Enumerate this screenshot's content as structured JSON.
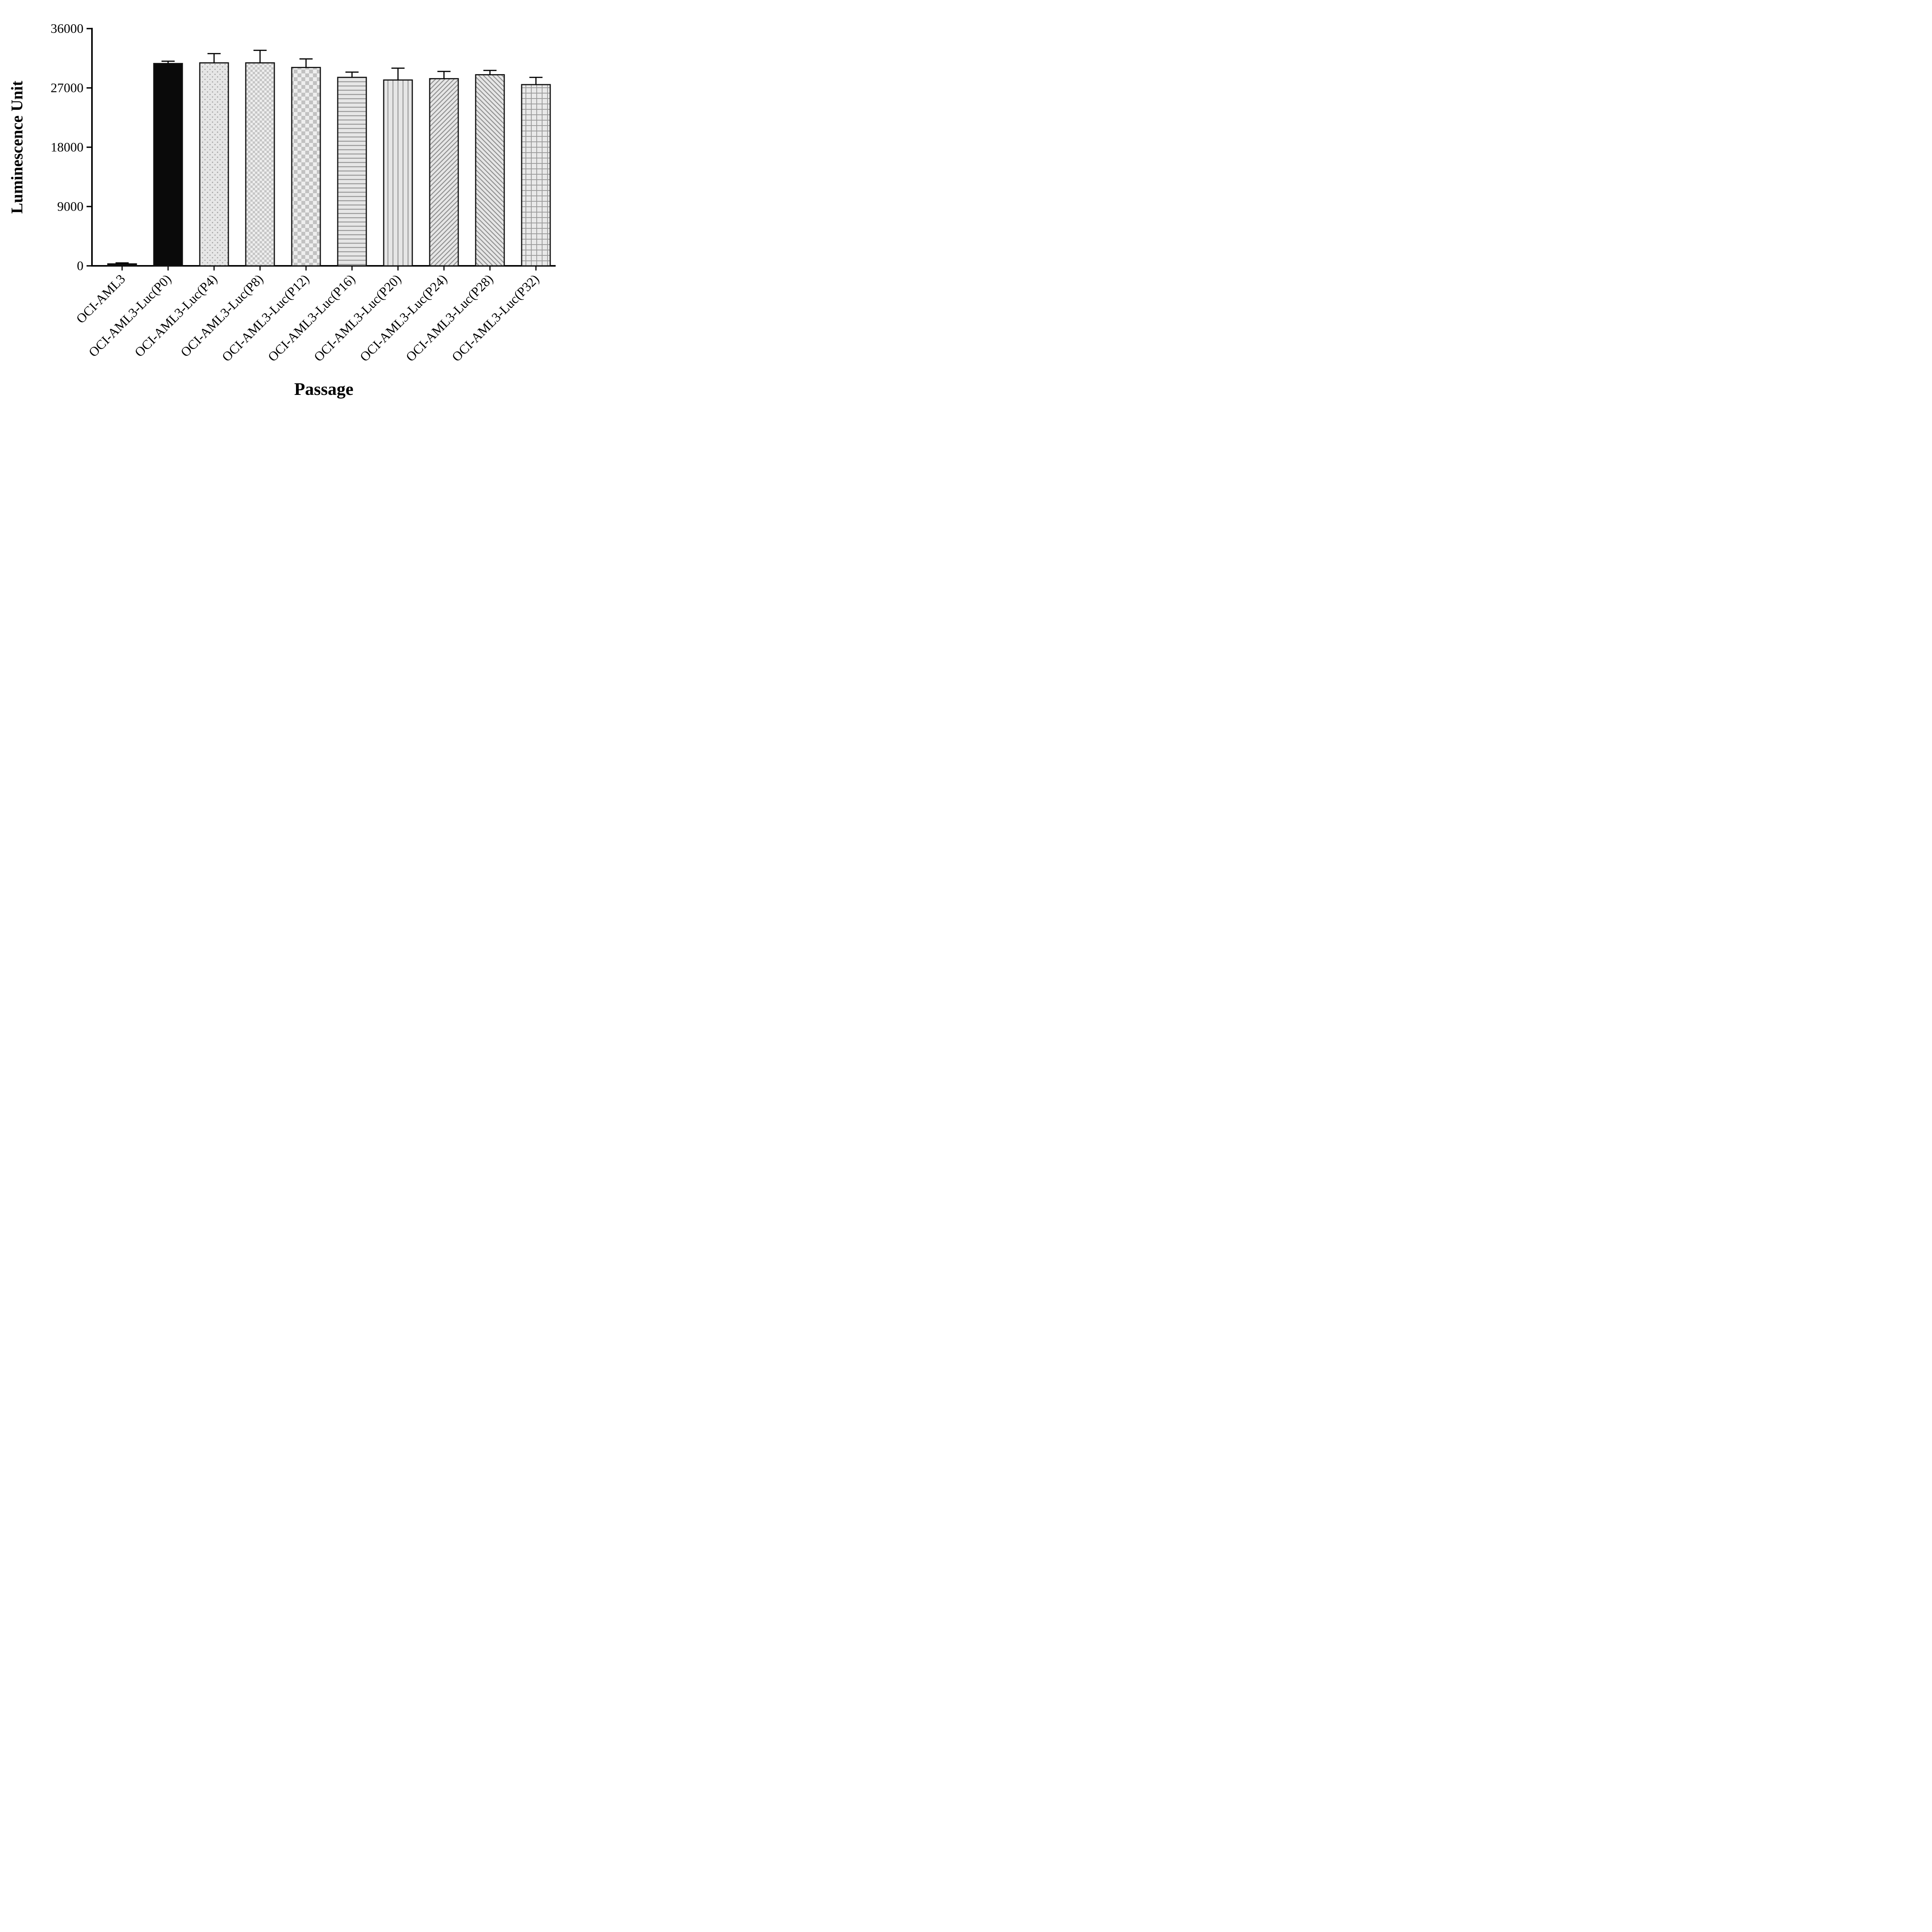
{
  "chart_data": {
    "type": "bar",
    "title": "",
    "xlabel": "Passage",
    "ylabel": "Luminescence Unit",
    "ylim": [
      0,
      36000
    ],
    "yticks": [
      0,
      9000,
      18000,
      27000,
      36000
    ],
    "grid": false,
    "legend": false,
    "categories": [
      "OCI-AML3",
      "OCI-AML3-Luc(P0)",
      "OCI-AML3-Luc(P4)",
      "OCI-AML3-Luc(P8)",
      "OCI-AML3-Luc(P12)",
      "OCI-AML3-Luc(P16)",
      "OCI-AML3-Luc(P20)",
      "OCI-AML3-Luc(P24)",
      "OCI-AML3-Luc(P28)",
      "OCI-AML3-Luc(P32)"
    ],
    "values": [
      300,
      30700,
      30800,
      30800,
      30100,
      28600,
      28200,
      28400,
      29000,
      27500
    ],
    "errors": [
      150,
      350,
      1400,
      1900,
      1300,
      800,
      1800,
      1100,
      650,
      1100
    ],
    "bar_styles": [
      "solid-black",
      "solid-black",
      "dots",
      "checker-small",
      "checker-large",
      "horizontal-lines",
      "vertical-lines",
      "diagonal-up",
      "diagonal-down",
      "grid"
    ],
    "colors": {
      "bar_fill_light": "#e6e6e6",
      "pattern_mark": "#8f8f8f",
      "bar_outline": "#111111",
      "solid_bar": "#0a0a0a",
      "axis": "#000000"
    }
  }
}
